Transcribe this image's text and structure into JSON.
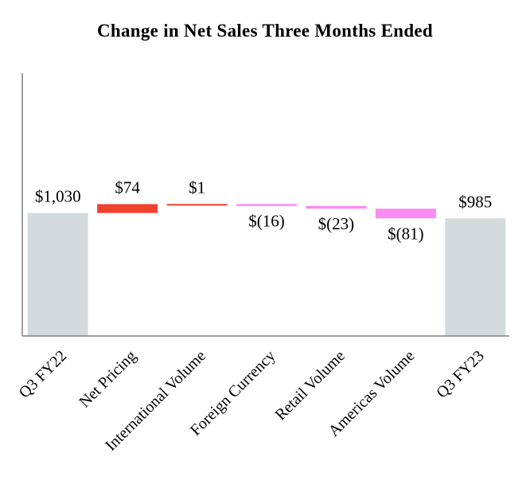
{
  "chart_data": {
    "type": "waterfall",
    "title": "Change in Net Sales Three Months Ended",
    "xlabel": "",
    "ylabel": "",
    "categories": [
      "Q3 FY22",
      "Net Pricing",
      "International Volume",
      "Foreign Currency",
      "Retail Volume",
      "Americas Volume",
      "Q3 FY23"
    ],
    "values": [
      1030,
      74,
      1,
      -16,
      -23,
      -81,
      985
    ],
    "kinds": [
      "total",
      "delta",
      "delta",
      "delta",
      "delta",
      "delta",
      "total"
    ],
    "data_labels": [
      "$1,030",
      "$74",
      "$1",
      "$(16)",
      "$(23)",
      "$(81)",
      "$985"
    ],
    "colors": {
      "total": "#d3dade",
      "increase": "#f0402e",
      "decrease": "#f88bf1",
      "axis": "#808080"
    },
    "ylim": [
      0,
      2200
    ],
    "grid": false,
    "legend": "none"
  }
}
